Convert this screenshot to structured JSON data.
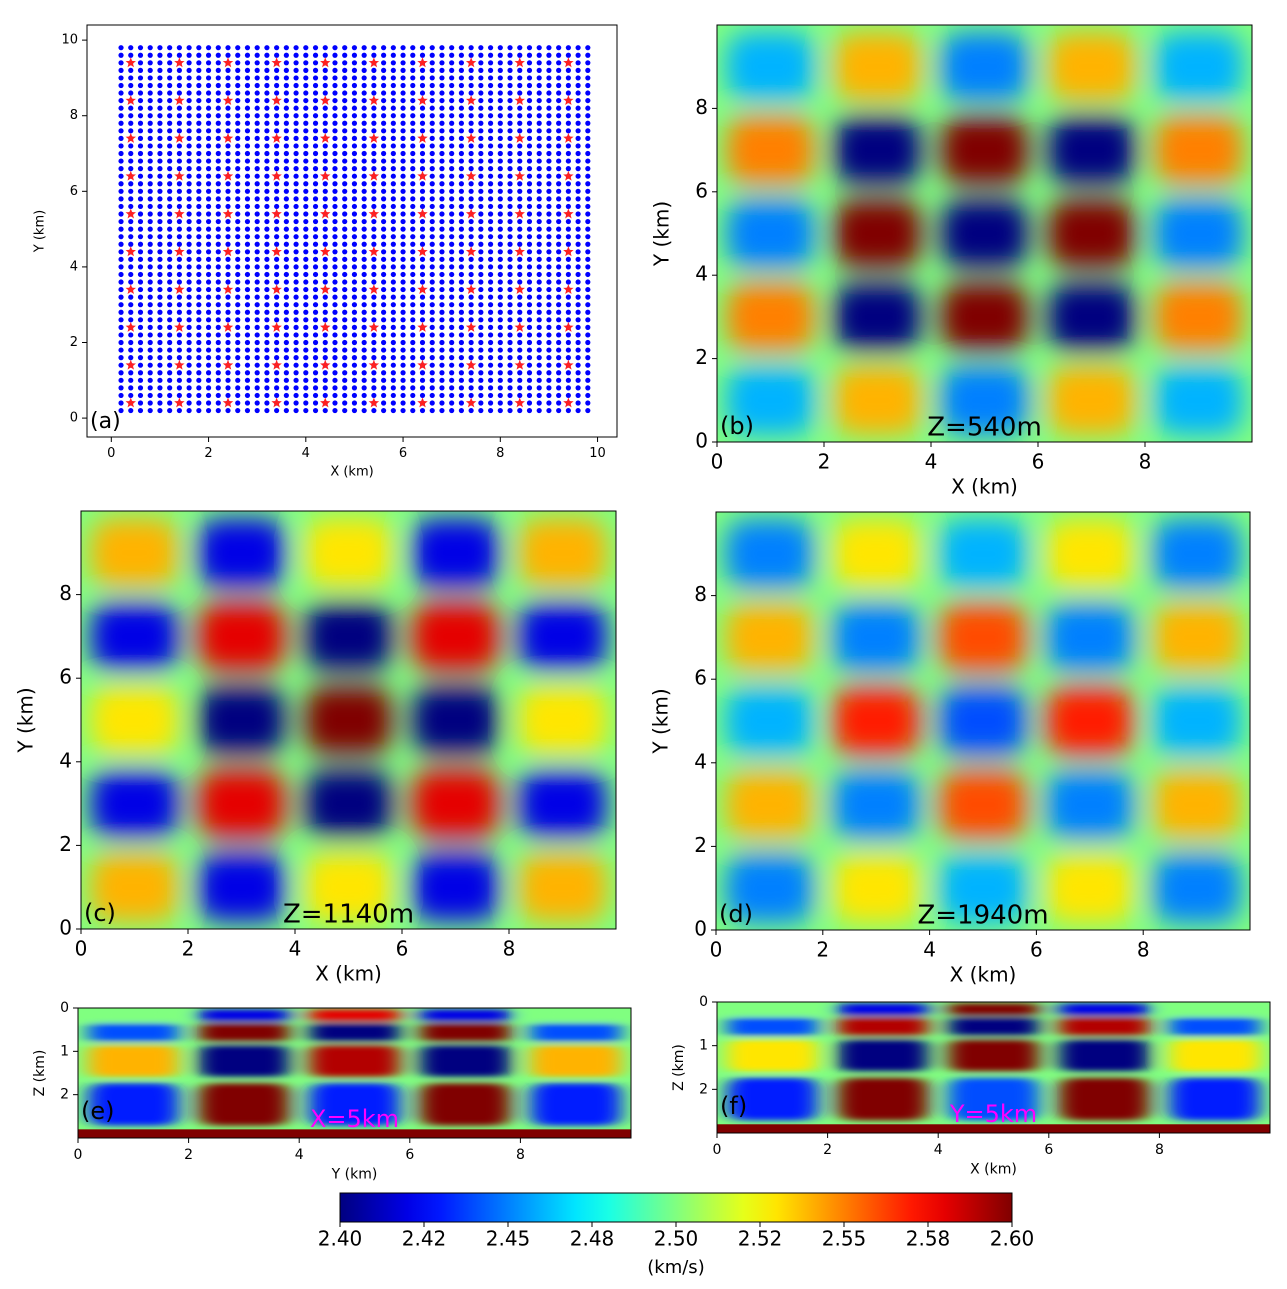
{
  "chart_data": [
    {
      "type": "scatter",
      "panel_label": "(a)",
      "x_label": "X (km)",
      "y_label": "Y (km)",
      "xlim": [
        -0.5,
        10.4
      ],
      "ylim": [
        -0.5,
        10.4
      ],
      "xticks": [
        0,
        2,
        4,
        6,
        8,
        10
      ],
      "yticks": [
        0,
        2,
        4,
        6,
        8,
        10
      ],
      "stations": {
        "color": "#0000ff",
        "marker": "dot",
        "x": [
          0.2,
          0.4,
          0.6,
          0.8,
          1,
          1.2,
          1.4,
          1.6,
          1.8,
          2,
          2.2,
          2.4,
          2.6,
          2.8,
          3,
          3.2,
          3.4,
          3.6,
          3.8,
          4,
          4.2,
          4.4,
          4.6,
          4.8,
          5,
          5.2,
          5.4,
          5.6,
          5.8,
          6,
          6.2,
          6.4,
          6.6,
          6.8,
          7,
          7.2,
          7.4,
          7.6,
          7.8,
          8,
          8.2,
          8.4,
          8.6,
          8.8,
          9,
          9.2,
          9.4,
          9.6,
          9.8
        ],
        "y": [
          0.2,
          0.4,
          0.6,
          0.8,
          1,
          1.2,
          1.4,
          1.6,
          1.8,
          2,
          2.2,
          2.4,
          2.6,
          2.8,
          3,
          3.2,
          3.4,
          3.6,
          3.8,
          4,
          4.2,
          4.4,
          4.6,
          4.8,
          5,
          5.2,
          5.4,
          5.6,
          5.8,
          6,
          6.2,
          6.4,
          6.6,
          6.8,
          7,
          7.2,
          7.4,
          7.6,
          7.8,
          8,
          8.2,
          8.4,
          8.6,
          8.8,
          9,
          9.2,
          9.4,
          9.6,
          9.8
        ]
      },
      "sources": {
        "color": "#ff2020",
        "marker": "star",
        "x": [
          0.4,
          1.4,
          2.4,
          3.4,
          4.4,
          5.4,
          6.4,
          7.4,
          8.4,
          9.4
        ],
        "y": [
          0.4,
          1.4,
          2.4,
          3.4,
          4.4,
          5.4,
          6.4,
          7.4,
          8.4,
          9.4
        ]
      }
    },
    {
      "type": "heatmap",
      "panel_label": "(b)",
      "annotation": "Z=540m",
      "annotation_color": "#000000",
      "x_label": "X (km)",
      "y_label": "Y (km)",
      "xlim": [
        0,
        10
      ],
      "ylim": [
        0,
        10
      ],
      "xticks": [
        0,
        2,
        4,
        6,
        8
      ],
      "yticks": [
        0,
        2,
        4,
        6,
        8
      ],
      "background": 2.5,
      "x": [
        1,
        3,
        5,
        7,
        9
      ],
      "y": [
        9,
        7,
        5,
        3,
        1
      ],
      "values": [
        [
          2.46,
          2.54,
          2.45,
          2.54,
          2.46
        ],
        [
          2.55,
          2.4,
          2.6,
          2.4,
          2.55
        ],
        [
          2.45,
          2.6,
          2.4,
          2.6,
          2.45
        ],
        [
          2.55,
          2.4,
          2.6,
          2.4,
          2.55
        ],
        [
          2.46,
          2.54,
          2.45,
          2.54,
          2.46
        ]
      ]
    },
    {
      "type": "heatmap",
      "panel_label": "(c)",
      "annotation": "Z=1140m",
      "annotation_color": "#000000",
      "x_label": "X (km)",
      "y_label": "Y (km)",
      "xlim": [
        0,
        10
      ],
      "ylim": [
        0,
        10
      ],
      "xticks": [
        0,
        2,
        4,
        6,
        8
      ],
      "yticks": [
        0,
        2,
        4,
        6,
        8
      ],
      "background": 2.5,
      "x": [
        1,
        3,
        5,
        7,
        9
      ],
      "y": [
        9,
        7,
        5,
        3,
        1
      ],
      "values": [
        [
          2.54,
          2.42,
          2.53,
          2.42,
          2.54
        ],
        [
          2.42,
          2.58,
          2.4,
          2.58,
          2.42
        ],
        [
          2.53,
          2.4,
          2.6,
          2.4,
          2.53
        ],
        [
          2.42,
          2.58,
          2.4,
          2.58,
          2.42
        ],
        [
          2.54,
          2.42,
          2.53,
          2.42,
          2.54
        ]
      ]
    },
    {
      "type": "heatmap",
      "panel_label": "(d)",
      "annotation": "Z=1940m",
      "annotation_color": "#000000",
      "x_label": "X (km)",
      "y_label": "Y (km)",
      "xlim": [
        0,
        10
      ],
      "ylim": [
        0,
        10
      ],
      "xticks": [
        0,
        2,
        4,
        6,
        8
      ],
      "yticks": [
        0,
        2,
        4,
        6,
        8
      ],
      "background": 2.5,
      "x": [
        1,
        3,
        5,
        7,
        9
      ],
      "y": [
        9,
        7,
        5,
        3,
        1
      ],
      "values": [
        [
          2.45,
          2.53,
          2.46,
          2.53,
          2.45
        ],
        [
          2.54,
          2.45,
          2.56,
          2.45,
          2.54
        ],
        [
          2.46,
          2.57,
          2.44,
          2.57,
          2.46
        ],
        [
          2.54,
          2.45,
          2.56,
          2.45,
          2.54
        ],
        [
          2.45,
          2.53,
          2.46,
          2.53,
          2.45
        ]
      ]
    },
    {
      "type": "section",
      "panel_label": "(e)",
      "annotation": "X=5km",
      "annotation_color": "#ff00ff",
      "x_label": "Y (km)",
      "y_label": "Z (km)",
      "xlim": [
        0,
        10
      ],
      "ylim": [
        3,
        0
      ],
      "xticks": [
        0,
        2,
        4,
        6,
        8
      ],
      "yticks": [
        0,
        1,
        2
      ],
      "background": 2.5,
      "x": [
        1,
        3,
        5,
        7,
        9
      ],
      "y": [
        0.15,
        0.5,
        1.1,
        2.2
      ],
      "values": [
        [
          2.5,
          2.42,
          2.58,
          2.42,
          2.5
        ],
        [
          2.44,
          2.6,
          2.4,
          2.6,
          2.44
        ],
        [
          2.54,
          2.4,
          2.59,
          2.4,
          2.54
        ],
        [
          2.43,
          2.6,
          2.43,
          2.6,
          2.43
        ]
      ],
      "basement": {
        "top": 2.8,
        "value": 2.6
      }
    },
    {
      "type": "section",
      "panel_label": "(f)",
      "annotation": "Y=5km",
      "annotation_color": "#ff00ff",
      "x_label": "X (km)",
      "y_label": "Z (km)",
      "xlim": [
        0,
        10
      ],
      "ylim": [
        3,
        0
      ],
      "xticks": [
        0,
        2,
        4,
        6,
        8
      ],
      "yticks": [
        0,
        1,
        2
      ],
      "background": 2.5,
      "x": [
        1,
        3,
        5,
        7,
        9
      ],
      "y": [
        0.15,
        0.5,
        1.1,
        2.2
      ],
      "values": [
        [
          2.5,
          2.42,
          2.6,
          2.42,
          2.5
        ],
        [
          2.44,
          2.59,
          2.4,
          2.59,
          2.44
        ],
        [
          2.53,
          2.4,
          2.6,
          2.4,
          2.53
        ],
        [
          2.43,
          2.6,
          2.44,
          2.6,
          2.43
        ]
      ],
      "basement": {
        "top": 2.8,
        "value": 2.6
      }
    },
    {
      "type": "colorbar",
      "colormap": "jet",
      "label": "(km/s)",
      "clim": [
        2.4,
        2.6
      ],
      "ticks": [
        {
          "value": 2.4,
          "label": "2.40"
        },
        {
          "value": 2.425,
          "label": "2.42"
        },
        {
          "value": 2.45,
          "label": "2.45"
        },
        {
          "value": 2.475,
          "label": "2.48"
        },
        {
          "value": 2.5,
          "label": "2.50"
        },
        {
          "value": 2.525,
          "label": "2.52"
        },
        {
          "value": 2.55,
          "label": "2.55"
        },
        {
          "value": 2.575,
          "label": "2.58"
        },
        {
          "value": 2.6,
          "label": "2.60"
        }
      ]
    }
  ]
}
